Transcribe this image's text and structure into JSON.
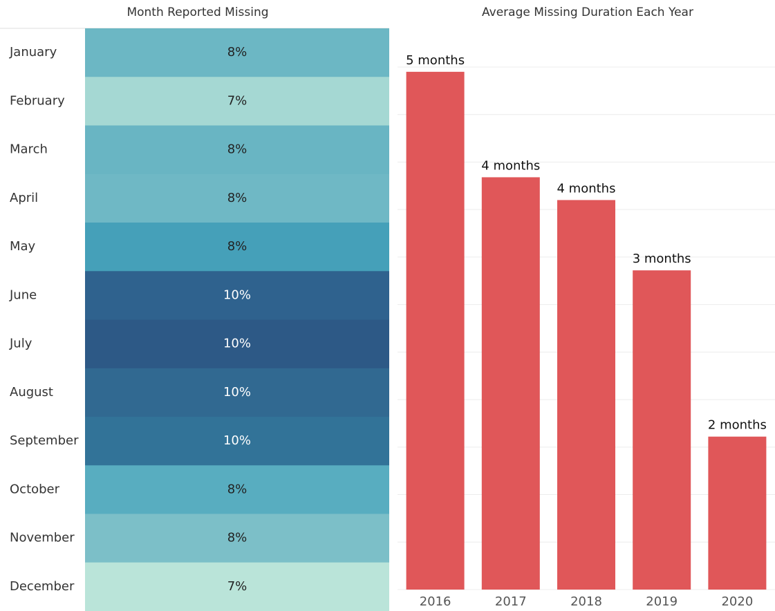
{
  "chart_data": [
    {
      "type": "heatmap",
      "title": "Month Reported Missing",
      "categories": [
        "January",
        "February",
        "March",
        "April",
        "May",
        "June",
        "July",
        "August",
        "September",
        "October",
        "November",
        "December"
      ],
      "values": [
        8,
        7,
        8,
        8,
        8,
        10,
        10,
        10,
        10,
        8,
        8,
        7
      ],
      "value_labels": [
        "8%",
        "7%",
        "8%",
        "8%",
        "8%",
        "10%",
        "10%",
        "10%",
        "10%",
        "8%",
        "8%",
        "7%"
      ],
      "colors": [
        "#6cb7c4",
        "#a5d8d3",
        "#69b5c3",
        "#6fb8c5",
        "#45a0b9",
        "#2f628e",
        "#2d5986",
        "#316991",
        "#327398",
        "#58adc0",
        "#7cbfc8",
        "#bae4d9"
      ]
    },
    {
      "type": "bar",
      "title": "Average Missing Duration Each Year",
      "categories": [
        "2016",
        "2017",
        "2018",
        "2019",
        "2020"
      ],
      "values": [
        5.45,
        4.34,
        4.1,
        3.36,
        1.61
      ],
      "value_labels": [
        "5 months",
        "4 months",
        "4 months",
        "3 months",
        "2 months"
      ],
      "color": "#e05759",
      "ylim": [
        0,
        5.5
      ],
      "yticks": [
        0,
        0.5,
        1,
        1.5,
        2,
        2.5,
        3,
        3.5,
        4,
        4.5,
        5,
        5.5
      ],
      "grid": true
    }
  ]
}
